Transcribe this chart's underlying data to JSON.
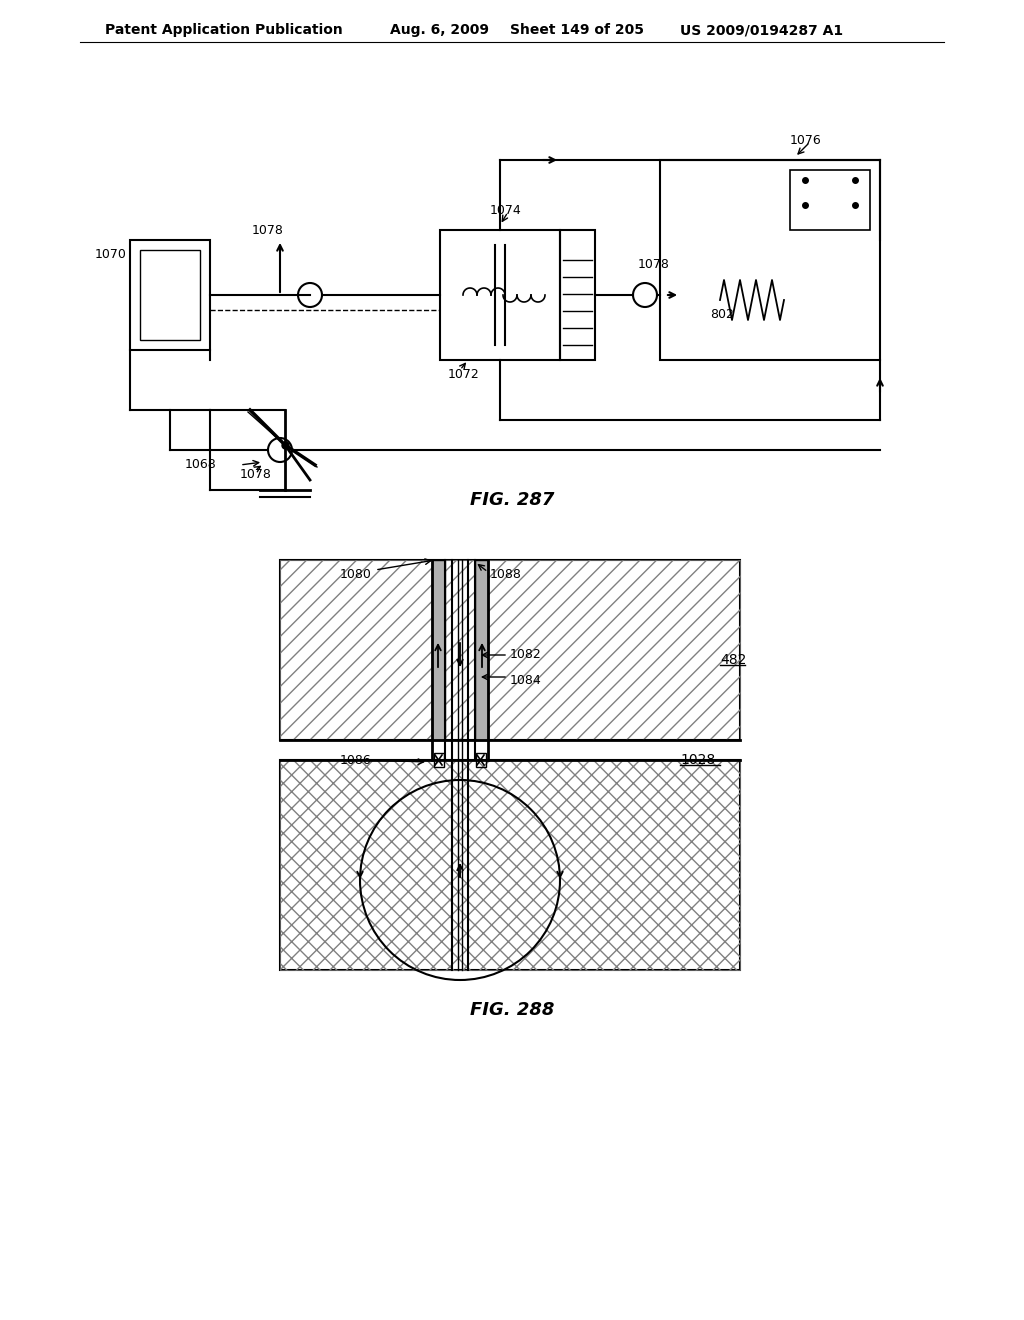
{
  "background_color": "#ffffff",
  "header_text": "Patent Application Publication",
  "header_date": "Aug. 6, 2009",
  "header_sheet": "Sheet 149 of 205",
  "header_patent": "US 2009/0194287 A1",
  "fig287_title": "FIG. 287",
  "fig288_title": "FIG. 288",
  "label_color": "#000000",
  "line_color": "#000000"
}
